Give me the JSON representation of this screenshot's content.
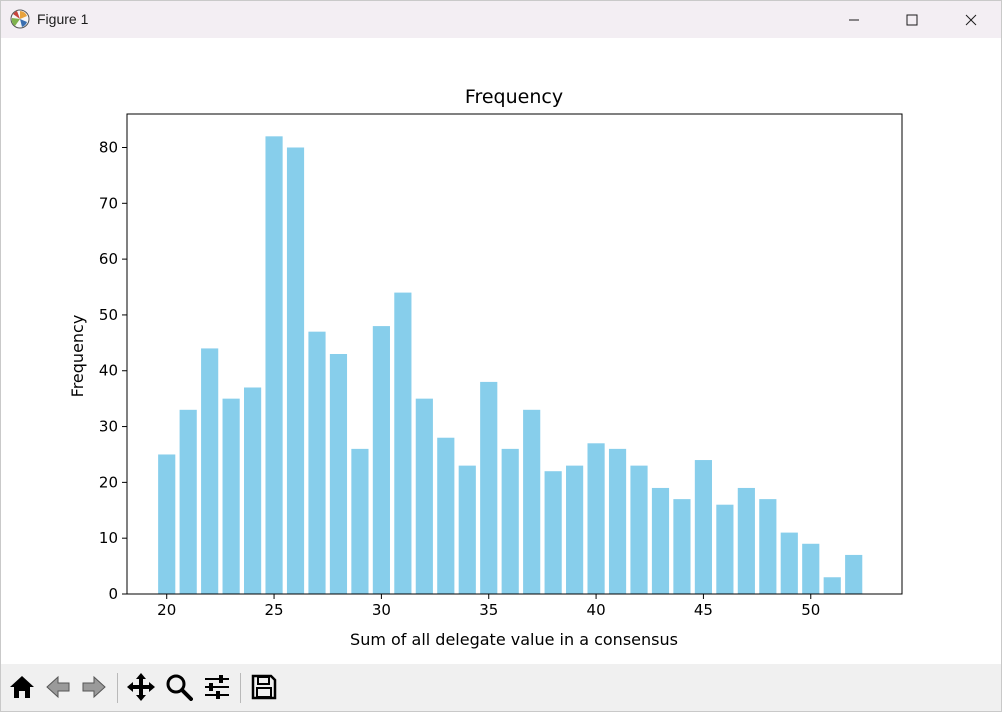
{
  "window": {
    "title": "Figure 1"
  },
  "toolbar": {
    "buttons": [
      {
        "name": "home-button",
        "icon": "home-icon"
      },
      {
        "name": "back-button",
        "icon": "arrow-left-icon"
      },
      {
        "name": "forward-button",
        "icon": "arrow-right-icon"
      },
      {
        "name": "pan-button",
        "icon": "move-icon"
      },
      {
        "name": "zoom-button",
        "icon": "magnifier-icon"
      },
      {
        "name": "configure-subplots-button",
        "icon": "sliders-icon"
      },
      {
        "name": "save-button",
        "icon": "floppy-disk-icon"
      }
    ]
  },
  "chart_data": {
    "type": "bar",
    "title": "Frequency",
    "xlabel": "Sum of all delegate value in a consensus",
    "ylabel": "Frequency",
    "bar_color": "#87ceeb",
    "x": [
      20,
      21,
      22,
      23,
      24,
      25,
      26,
      27,
      28,
      29,
      30,
      31,
      32,
      33,
      34,
      35,
      36,
      37,
      38,
      39,
      40,
      41,
      42,
      43,
      44,
      45,
      46,
      47,
      48,
      49,
      50,
      51,
      52
    ],
    "values": [
      25,
      33,
      44,
      35,
      37,
      82,
      80,
      47,
      43,
      26,
      48,
      54,
      35,
      28,
      23,
      38,
      26,
      33,
      22,
      23,
      27,
      26,
      23,
      19,
      17,
      24,
      16,
      19,
      17,
      11,
      9,
      3,
      7
    ],
    "xlim": [
      18.15,
      54.25
    ],
    "ylim": [
      0,
      86
    ],
    "xticks": [
      20,
      25,
      30,
      35,
      40,
      45,
      50
    ],
    "yticks": [
      0,
      10,
      20,
      30,
      40,
      50,
      60,
      70,
      80
    ],
    "grid": false,
    "legend": "none"
  }
}
